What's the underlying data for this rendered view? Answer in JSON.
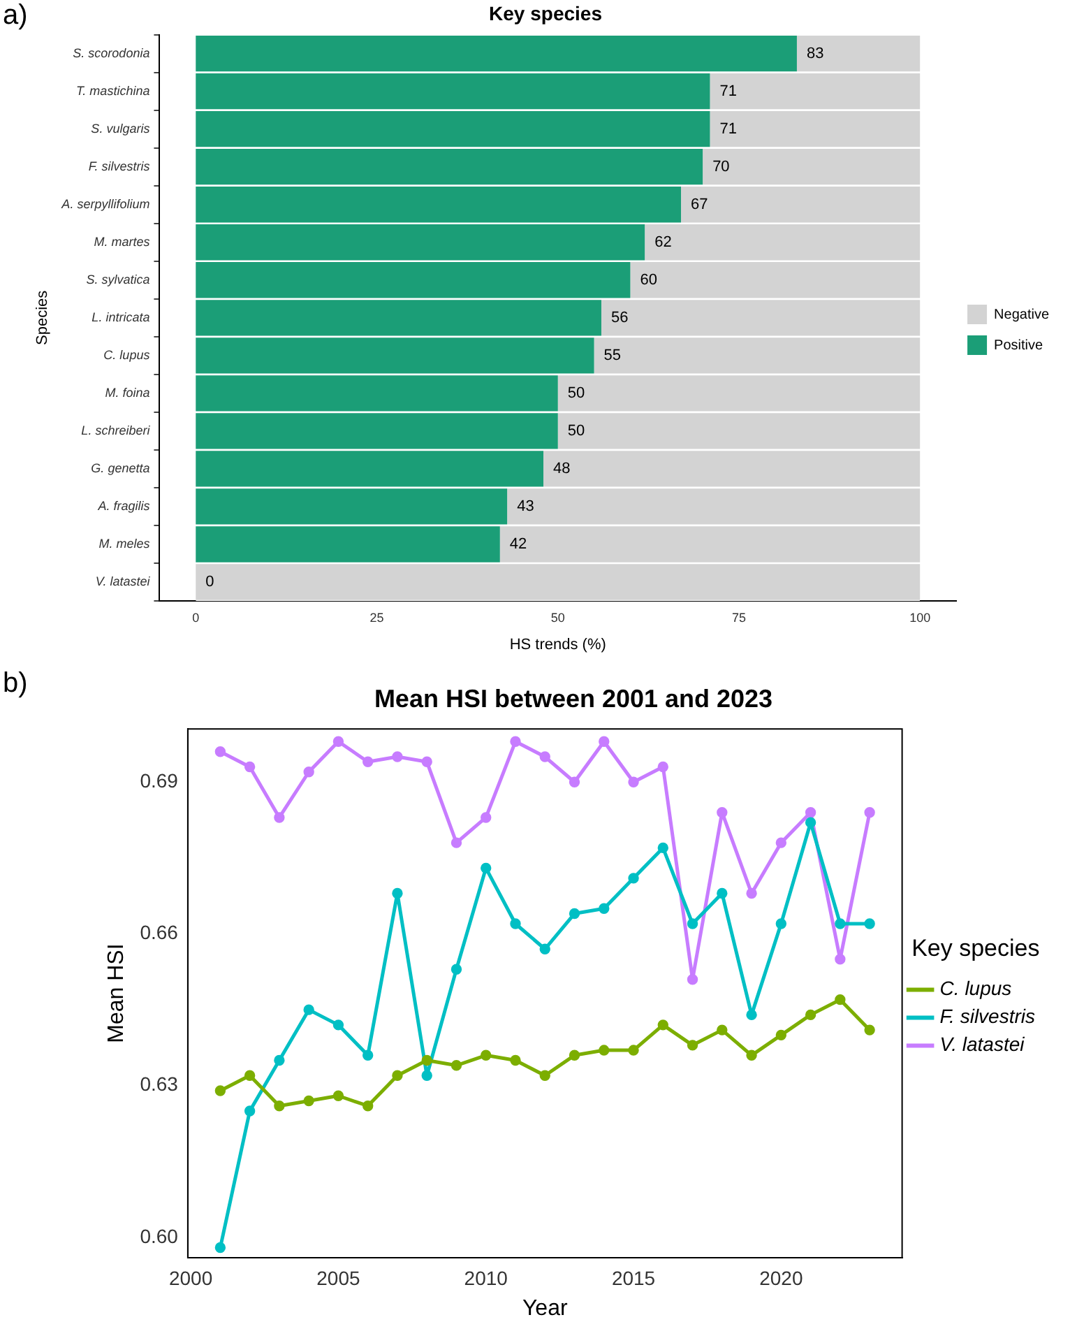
{
  "chart_data": [
    {
      "type": "bar",
      "orientation": "horizontal",
      "stacked": true,
      "title": "Key species",
      "xlabel": "HS trends (%)",
      "ylabel": "Species",
      "legend": "right",
      "annotations": [
        "a)"
      ],
      "categories": [
        "S. scorodonia",
        "T. mastichina",
        "S. vulgaris",
        "F. silvestris",
        "A. serpyllifolium",
        "M. martes",
        "S. sylvatica",
        "L. intricata",
        "C. lupus",
        "M. foina",
        "L. schreiberi",
        "G. genetta",
        "A. fragilis",
        "M. meles",
        "V. latastei"
      ],
      "series": [
        {
          "name": "Positive",
          "color": "#1b9e77",
          "values": [
            83,
            71,
            71,
            70,
            67,
            62,
            60,
            56,
            55,
            50,
            50,
            48,
            43,
            42,
            0
          ],
          "value_labels": [
            "83",
            "71",
            "71",
            "70",
            "67",
            "62",
            "60",
            "56",
            "55",
            "50",
            "50",
            "48",
            "43",
            "42",
            "0"
          ]
        },
        {
          "name": "Negative",
          "color": "#d3d3d3",
          "values": [
            17,
            29,
            29,
            30,
            33,
            38,
            40,
            44,
            45,
            50,
            50,
            52,
            57,
            58,
            100
          ]
        }
      ],
      "xlim": [
        -5,
        105
      ],
      "xticks": [
        0,
        25,
        50,
        75,
        100
      ]
    },
    {
      "type": "line",
      "title": "Mean HSI between 2001 and 2023",
      "xlabel": "Year",
      "ylabel": "Mean HSI",
      "legend_title": "Key species",
      "legend": "right",
      "marker": "circle",
      "line_style": "solid",
      "annotations": [
        "b)"
      ],
      "x": [
        2001,
        2002,
        2003,
        2004,
        2005,
        2006,
        2007,
        2008,
        2009,
        2010,
        2011,
        2012,
        2013,
        2014,
        2015,
        2016,
        2017,
        2018,
        2019,
        2020,
        2021,
        2022,
        2023
      ],
      "series": [
        {
          "name": "C. lupus",
          "color": "#7cae00",
          "values": [
            0.629,
            0.632,
            0.626,
            0.627,
            0.628,
            0.626,
            0.632,
            0.635,
            0.634,
            0.636,
            0.635,
            0.632,
            0.636,
            0.637,
            0.637,
            0.642,
            0.638,
            0.641,
            0.636,
            0.64,
            0.644,
            0.647,
            0.641
          ]
        },
        {
          "name": "F. silvestris",
          "color": "#00bfc4",
          "values": [
            0.598,
            0.625,
            0.635,
            0.645,
            0.642,
            0.636,
            0.668,
            0.632,
            0.653,
            0.673,
            0.662,
            0.657,
            0.664,
            0.665,
            0.671,
            0.677,
            0.662,
            0.668,
            0.644,
            0.662,
            0.682,
            0.662,
            0.662
          ]
        },
        {
          "name": "V. latastei",
          "color": "#c77cff",
          "values": [
            0.696,
            0.693,
            0.683,
            0.692,
            0.698,
            0.694,
            0.695,
            0.694,
            0.678,
            0.683,
            0.698,
            0.695,
            0.69,
            0.698,
            0.69,
            0.693,
            0.651,
            0.684,
            0.668,
            0.678,
            0.684,
            0.655,
            0.684
          ]
        }
      ],
      "xlim": [
        1999.9,
        2024.1
      ],
      "xticks": [
        2000,
        2005,
        2010,
        2015,
        2020
      ],
      "ylim": [
        0.596,
        0.7005
      ],
      "yticks": [
        {
          "value": 0.6,
          "label": "0.60"
        },
        {
          "value": 0.63,
          "label": "0.63"
        },
        {
          "value": 0.66,
          "label": "0.66"
        },
        {
          "value": 0.69,
          "label": "0.69"
        }
      ]
    }
  ]
}
